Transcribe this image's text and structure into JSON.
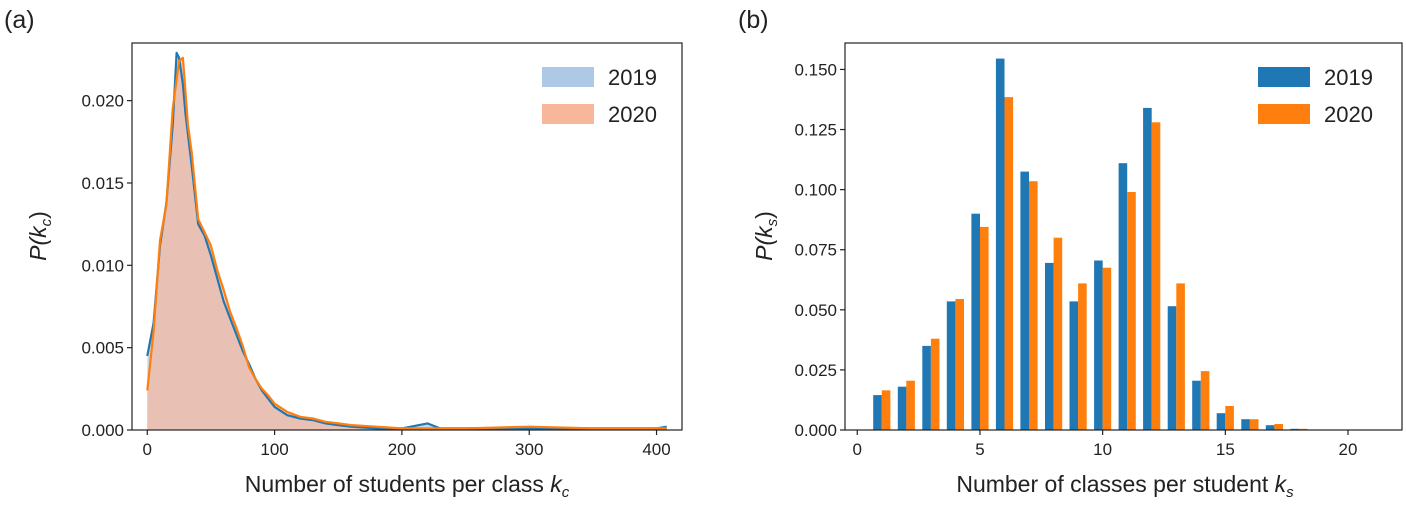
{
  "colors": {
    "series_2019": "#1f77b4",
    "series_2020": "#ff7f0e",
    "fill_2019": "#aec9e6",
    "fill_2020": "#f7b79b"
  },
  "chart_data": [
    {
      "type": "area",
      "panel_label": "(a)",
      "xlabel": "Number of students per class",
      "xlabel_symbol": "k",
      "xlabel_sub": "c",
      "ylabel_symbol": "P(k",
      "ylabel_sub": "c",
      "ylabel_close": ")",
      "xlim": [
        -12,
        420
      ],
      "ylim": [
        0,
        0.0235
      ],
      "xticks": [
        0,
        100,
        200,
        300,
        400
      ],
      "yticks": [
        "0.000",
        "0.005",
        "0.010",
        "0.015",
        "0.020"
      ],
      "ytick_values": [
        0,
        0.005,
        0.01,
        0.015,
        0.02
      ],
      "grid": false,
      "legend": "top-right",
      "series": [
        {
          "name": "2019",
          "x": [
            0,
            5,
            10,
            15,
            20,
            23,
            25,
            28,
            30,
            35,
            40,
            45,
            50,
            55,
            60,
            65,
            70,
            75,
            80,
            85,
            90,
            95,
            100,
            110,
            120,
            130,
            140,
            150,
            160,
            180,
            200,
            220,
            230,
            250,
            300,
            350,
            400,
            408
          ],
          "y": [
            0.0045,
            0.0065,
            0.0112,
            0.0138,
            0.0185,
            0.0229,
            0.0226,
            0.021,
            0.0192,
            0.016,
            0.0125,
            0.0118,
            0.0106,
            0.0092,
            0.0078,
            0.0068,
            0.0058,
            0.0048,
            0.004,
            0.0031,
            0.0024,
            0.0019,
            0.0014,
            0.0009,
            0.0007,
            0.0006,
            0.0004,
            0.0003,
            0.0002,
            0.0001,
            0.0001,
            0.0004,
            0.0001,
            0.0001,
            0.0001,
            0.0001,
            0.0001,
            0.0002
          ]
        },
        {
          "name": "2020",
          "x": [
            0,
            5,
            10,
            15,
            20,
            25,
            28,
            32,
            35,
            40,
            45,
            50,
            55,
            60,
            65,
            70,
            75,
            80,
            85,
            90,
            95,
            100,
            110,
            120,
            130,
            140,
            150,
            160,
            180,
            200,
            250,
            300,
            350,
            400,
            408
          ],
          "y": [
            0.0024,
            0.006,
            0.0115,
            0.0137,
            0.0195,
            0.0224,
            0.0226,
            0.0185,
            0.0168,
            0.0128,
            0.012,
            0.0112,
            0.0097,
            0.0085,
            0.0072,
            0.0062,
            0.0051,
            0.0038,
            0.0031,
            0.0025,
            0.0021,
            0.0016,
            0.0011,
            0.0008,
            0.0007,
            0.0005,
            0.0004,
            0.0003,
            0.0002,
            0.0001,
            0.0001,
            0.0002,
            0.0001,
            0.0001,
            0.0001
          ]
        }
      ]
    },
    {
      "type": "bar",
      "panel_label": "(b)",
      "xlabel": "Number of classes per student",
      "xlabel_symbol": "k",
      "xlabel_sub": "s",
      "ylabel_symbol": "P(k",
      "ylabel_sub": "s",
      "ylabel_close": ")",
      "xlim": [
        -0.5,
        22.2
      ],
      "ylim": [
        0,
        0.161
      ],
      "xticks": [
        0,
        5,
        10,
        15,
        20
      ],
      "yticks": [
        "0.000",
        "0.025",
        "0.050",
        "0.075",
        "0.100",
        "0.125",
        "0.150"
      ],
      "ytick_values": [
        0,
        0.025,
        0.05,
        0.075,
        0.1,
        0.125,
        0.15
      ],
      "grid": false,
      "legend": "top-right",
      "categories": [
        1,
        2,
        3,
        4,
        5,
        6,
        7,
        8,
        9,
        10,
        11,
        12,
        13,
        14,
        15,
        16,
        17,
        18
      ],
      "series": [
        {
          "name": "2019",
          "values": [
            0.0145,
            0.018,
            0.035,
            0.0535,
            0.09,
            0.1545,
            0.1075,
            0.0695,
            0.0535,
            0.0705,
            0.111,
            0.134,
            0.0515,
            0.0205,
            0.007,
            0.0045,
            0.002,
            0.0005
          ]
        },
        {
          "name": "2020",
          "values": [
            0.0165,
            0.0205,
            0.038,
            0.0545,
            0.0845,
            0.1385,
            0.1035,
            0.08,
            0.061,
            0.0675,
            0.099,
            0.128,
            0.061,
            0.0245,
            0.01,
            0.0045,
            0.0025,
            0.0005
          ]
        }
      ]
    }
  ]
}
